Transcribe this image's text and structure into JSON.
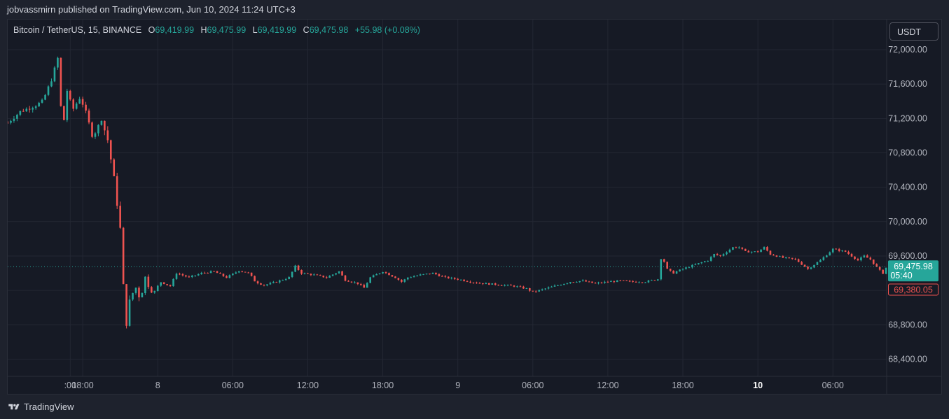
{
  "header": {
    "published_text": "jobvassmirn published on TradingView.com, Jun 10, 2024 11:24 UTC+3"
  },
  "legend": {
    "symbol": "Bitcoin / TetherUS, 15, BINANCE",
    "open_label": "O",
    "open_value": "69,419.99",
    "high_label": "H",
    "high_value": "69,475.99",
    "low_label": "L",
    "low_value": "69,419.99",
    "close_label": "C",
    "close_value": "69,475.98",
    "change": "+55.98 (+0.08%)"
  },
  "currency_button": {
    "label": "USDT"
  },
  "footer": {
    "brand": "TradingView",
    "logo_icon": "tradingview-logo-icon"
  },
  "colors": {
    "background": "#161a25",
    "up": "#26a69a",
    "down": "#ef5350",
    "grid": "#232733",
    "axis_text": "#b2b5be"
  },
  "chart_data": {
    "type": "candlestick",
    "title": "",
    "xlabel": "",
    "ylabel": "",
    "ylim": [
      68200,
      72350
    ],
    "y_ticks": [
      "72,000.00",
      "71,600.00",
      "71,200.00",
      "70,800.00",
      "70,400.00",
      "70,000.00",
      "69,600.00",
      "69,200.00",
      "68,800.00",
      "68,400.00"
    ],
    "x_ticks": [
      {
        "label": ":00",
        "t": -1.0,
        "bold": false
      },
      {
        "label": "18:00",
        "t": 0,
        "bold": false
      },
      {
        "label": "8",
        "t": 6,
        "bold": false
      },
      {
        "label": "06:00",
        "t": 12,
        "bold": false
      },
      {
        "label": "12:00",
        "t": 18,
        "bold": false
      },
      {
        "label": "18:00",
        "t": 24,
        "bold": false
      },
      {
        "label": "9",
        "t": 30,
        "bold": false
      },
      {
        "label": "06:00",
        "t": 36,
        "bold": false
      },
      {
        "label": "12:00",
        "t": 42,
        "bold": false
      },
      {
        "label": "18:00",
        "t": 48,
        "bold": false
      },
      {
        "label": "10",
        "t": 54,
        "bold": true
      },
      {
        "label": "06:00",
        "t": 60,
        "bold": false
      }
    ],
    "t_range": [
      -6.0,
      64.3
    ],
    "last_price": {
      "value": 69475.98,
      "label": "69,475.98",
      "countdown": "05:40"
    },
    "low_marker": {
      "value": 69380.05,
      "label": "69,380.05"
    },
    "anchors": [
      [
        -6.0,
        71150
      ],
      [
        -5.0,
        71280
      ],
      [
        -3.8,
        71350
      ],
      [
        -3.2,
        71400
      ],
      [
        -2.5,
        71650
      ],
      [
        -2.0,
        71900
      ],
      [
        -1.6,
        71000
      ],
      [
        -1.3,
        71550
      ],
      [
        -0.8,
        71300
      ],
      [
        -0.2,
        71450
      ],
      [
        0.3,
        71250
      ],
      [
        0.8,
        70980
      ],
      [
        1.2,
        71100
      ],
      [
        1.5,
        71180
      ],
      [
        2.0,
        70950
      ],
      [
        2.5,
        70500
      ],
      [
        2.8,
        70150
      ],
      [
        3.1,
        69800
      ],
      [
        3.4,
        68700
      ],
      [
        3.7,
        69050
      ],
      [
        4.2,
        69250
      ],
      [
        4.6,
        69100
      ],
      [
        5.0,
        69350
      ],
      [
        5.6,
        69150
      ],
      [
        6.2,
        69300
      ],
      [
        7.0,
        69250
      ],
      [
        7.5,
        69400
      ],
      [
        8.5,
        69350
      ],
      [
        9.5,
        69400
      ],
      [
        10.5,
        69420
      ],
      [
        11.5,
        69350
      ],
      [
        12.5,
        69430
      ],
      [
        13.3,
        69400
      ],
      [
        13.8,
        69300
      ],
      [
        14.5,
        69260
      ],
      [
        15.5,
        69300
      ],
      [
        16.5,
        69350
      ],
      [
        17.0,
        69480
      ],
      [
        17.5,
        69400
      ],
      [
        18.5,
        69380
      ],
      [
        19.5,
        69350
      ],
      [
        20.5,
        69420
      ],
      [
        21.0,
        69320
      ],
      [
        22.0,
        69280
      ],
      [
        22.5,
        69230
      ],
      [
        23.0,
        69350
      ],
      [
        24.0,
        69420
      ],
      [
        25.0,
        69350
      ],
      [
        25.5,
        69300
      ],
      [
        26.0,
        69350
      ],
      [
        27.0,
        69380
      ],
      [
        28.0,
        69400
      ],
      [
        29.0,
        69350
      ],
      [
        30.0,
        69330
      ],
      [
        31.0,
        69300
      ],
      [
        32.0,
        69280
      ],
      [
        33.0,
        69270
      ],
      [
        34.5,
        69250
      ],
      [
        35.5,
        69220
      ],
      [
        36.0,
        69180
      ],
      [
        37.0,
        69220
      ],
      [
        38.0,
        69260
      ],
      [
        39.0,
        69300
      ],
      [
        40.0,
        69310
      ],
      [
        41.0,
        69280
      ],
      [
        42.0,
        69300
      ],
      [
        43.0,
        69310
      ],
      [
        44.0,
        69300
      ],
      [
        45.0,
        69300
      ],
      [
        46.0,
        69330
      ],
      [
        46.3,
        69620
      ],
      [
        46.7,
        69450
      ],
      [
        47.2,
        69400
      ],
      [
        48.0,
        69450
      ],
      [
        49.0,
        69500
      ],
      [
        50.0,
        69550
      ],
      [
        50.5,
        69620
      ],
      [
        51.0,
        69600
      ],
      [
        52.0,
        69700
      ],
      [
        52.5,
        69700
      ],
      [
        53.0,
        69650
      ],
      [
        54.0,
        69650
      ],
      [
        54.5,
        69700
      ],
      [
        55.0,
        69620
      ],
      [
        56.0,
        69580
      ],
      [
        57.0,
        69560
      ],
      [
        58.0,
        69450
      ],
      [
        59.0,
        69550
      ],
      [
        60.0,
        69680
      ],
      [
        61.0,
        69650
      ],
      [
        62.0,
        69550
      ],
      [
        62.5,
        69600
      ],
      [
        63.0,
        69560
      ],
      [
        63.6,
        69450
      ],
      [
        64.0,
        69400
      ],
      [
        64.3,
        69476
      ]
    ]
  }
}
